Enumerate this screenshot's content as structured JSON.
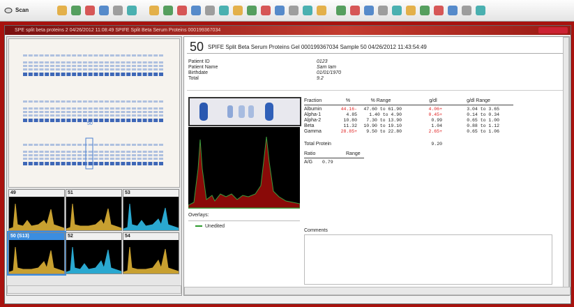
{
  "toolbar": {
    "scan": "Scan"
  },
  "window": {
    "title": "SPE split beta proteins 2 04/26/2012 11:08:49 SPIFE Split Beta Serum Proteins 000199367034"
  },
  "header": {
    "sample": "50",
    "title": "SPIFE Split Beta Serum Proteins Gel 000199367034 Sample 50 04/26/2012 11:43:54:49"
  },
  "patient": [
    {
      "label": "Patient ID",
      "value": "0123"
    },
    {
      "label": "Patient Name",
      "value": "Sam Iam"
    },
    {
      "label": "Birthdate",
      "value": "01/01/1970"
    },
    {
      "label": "Total",
      "value": "9.2"
    }
  ],
  "gel": {
    "selected_label": "50"
  },
  "thumbnails": [
    {
      "label": "49",
      "color": "#c8a030"
    },
    {
      "label": "51",
      "color": "#c8a030"
    },
    {
      "label": "53",
      "color": "#2aa8d0"
    },
    {
      "label": "50 (S13)",
      "color": "#c8a030"
    },
    {
      "label": "52",
      "color": "#2aa8d0"
    },
    {
      "label": "54",
      "color": "#c8a030"
    }
  ],
  "table": {
    "headers": [
      "Fraction",
      "%",
      "% Range",
      "g/dl",
      "g/dl Range"
    ],
    "rows": [
      [
        "Albumin",
        "44.16-",
        "47.60 to 61.90",
        "4.06+",
        "3.04 to 3.65"
      ],
      [
        "Alpha-1",
        "4.85",
        "1.40 to 4.90",
        "0.45+",
        "0.14 to 0.34"
      ],
      [
        "Alpha-2",
        "10.80",
        "7.30 to 13.90",
        "0.99",
        "0.65 to 1.00"
      ],
      [
        "Beta",
        "11.32",
        "10.90 to 19.10",
        "1.04",
        "0.88 to 1.12"
      ],
      [
        "Gamma",
        "28.85+",
        "9.50 to 22.80",
        "2.65+",
        "0.65 to 1.06"
      ]
    ]
  },
  "total_protein": {
    "label": "Total Protein",
    "value": "9.20"
  },
  "ratio": {
    "headers": [
      "Ratio",
      "Range"
    ],
    "rows": [
      [
        "A/G",
        "0.79"
      ]
    ]
  },
  "overlays": {
    "label": "Overlays:",
    "items": [
      "Unedited"
    ]
  },
  "comments": {
    "label": "Comments"
  }
}
